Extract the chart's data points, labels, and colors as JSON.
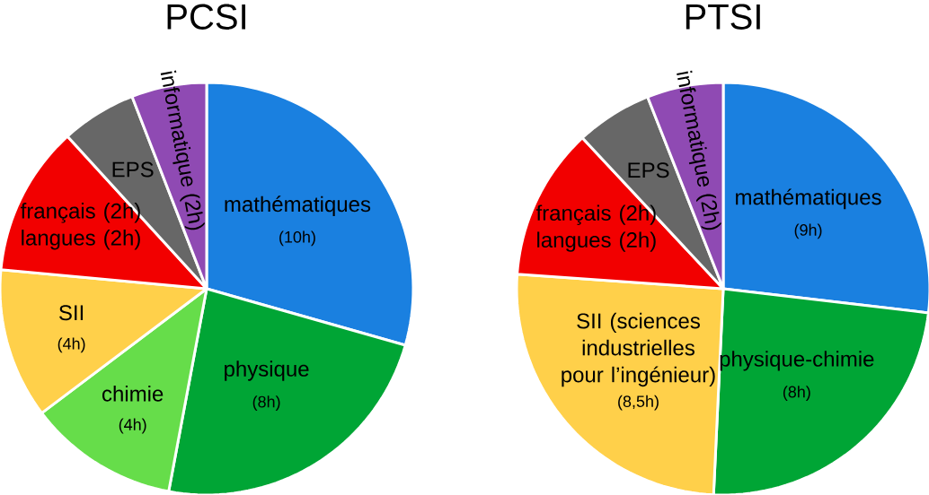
{
  "chart_data": [
    {
      "type": "pie",
      "title": "PCSI",
      "categories": [
        "mathématiques",
        "physique",
        "chimie",
        "SII",
        "français (2h) langues (2h)",
        "EPS",
        "informatique"
      ],
      "values": [
        10,
        8,
        4,
        4,
        4,
        2,
        2
      ],
      "value_labels": [
        "(10h)",
        "(8h)",
        "(4h)",
        "(4h)",
        null,
        null,
        "(2h)"
      ],
      "colors": [
        "#1a80e0",
        "#00a535",
        "#66dd4a",
        "#ffd04a",
        "#f20000",
        "#676767",
        "#8f4ab3"
      ]
    },
    {
      "type": "pie",
      "title": "PTSI",
      "categories": [
        "mathématiques",
        "physique-chimie",
        "SII (sciences industrielles pour l’ingénieur)",
        "français (2h) langues (2h)",
        "EPS",
        "informatique"
      ],
      "values": [
        9,
        8,
        8.5,
        4,
        2,
        2
      ],
      "value_labels": [
        "(9h)",
        "(8h)",
        "(8,5h)",
        null,
        null,
        "(2h)"
      ],
      "colors": [
        "#1a80e0",
        "#00a535",
        "#ffd04a",
        "#f20000",
        "#676767",
        "#8f4ab3"
      ]
    }
  ]
}
